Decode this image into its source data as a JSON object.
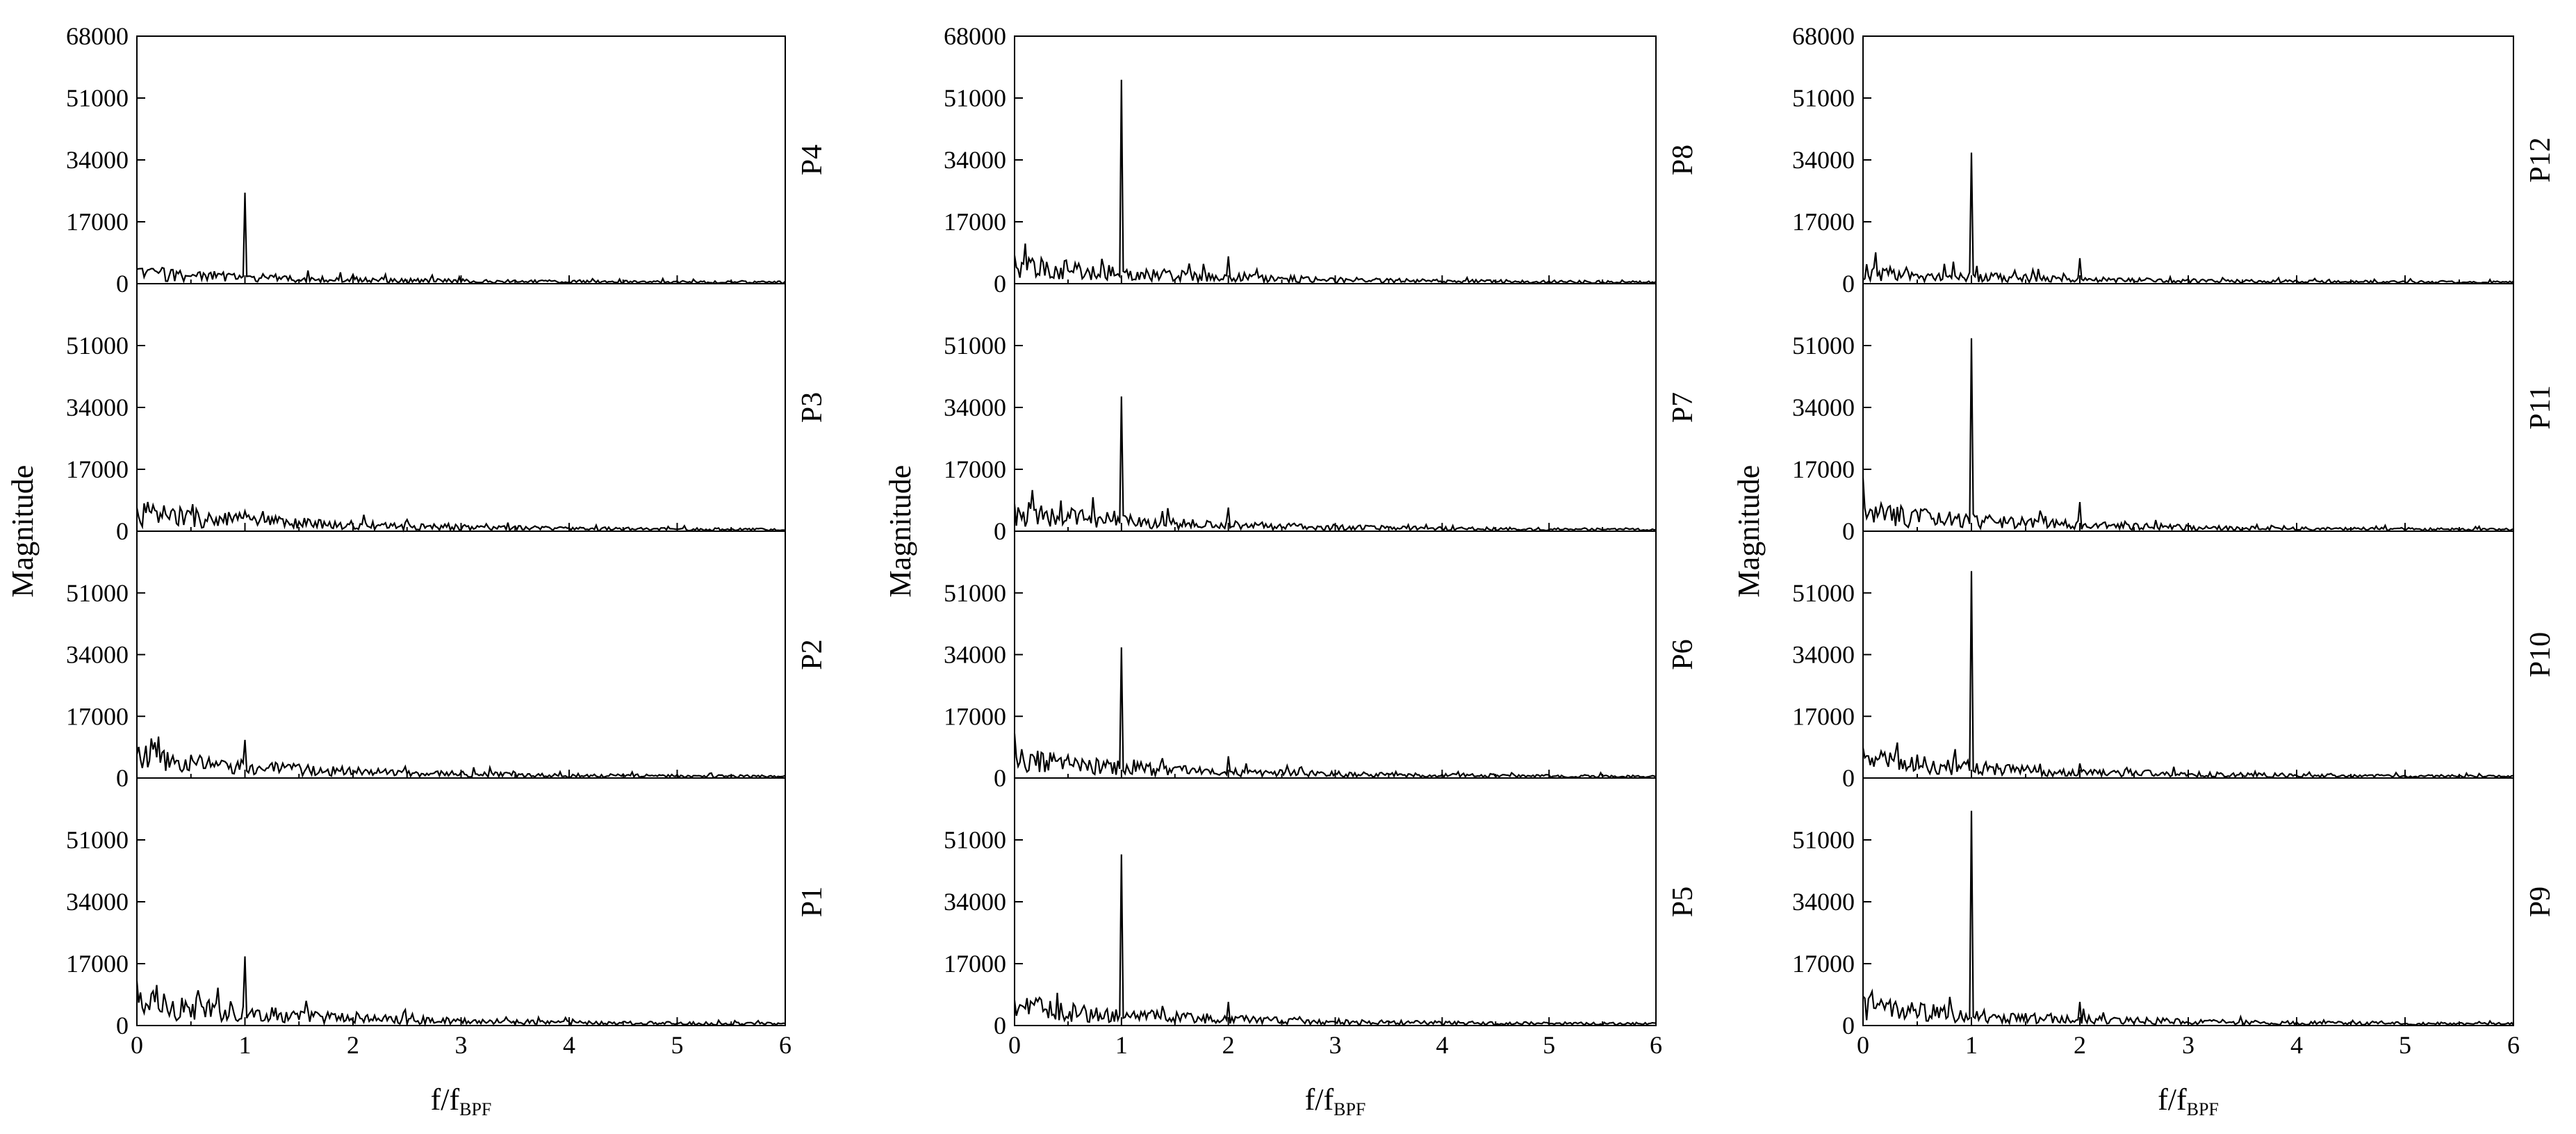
{
  "figure": {
    "ylabel": "Magnitude",
    "xlabel_main": "f/f",
    "xlabel_sub": "BPF",
    "x_ticks": [
      "0",
      "1",
      "2",
      "3",
      "4",
      "5",
      "6"
    ],
    "y_ticks": [
      "0",
      "17000",
      "34000",
      "51000",
      "68000"
    ],
    "line_color": "#000000"
  },
  "chart_data": [
    {
      "type": "line",
      "panel": "P1",
      "column": 1,
      "xlim": [
        0,
        6
      ],
      "ylim": [
        0,
        68000
      ],
      "peak_x": 1,
      "peak_y": 19000,
      "harmonic_2_y": 1200,
      "noise_low": 10000
    },
    {
      "type": "line",
      "panel": "P2",
      "column": 1,
      "xlim": [
        0,
        6
      ],
      "ylim": [
        0,
        68000
      ],
      "peak_x": 1,
      "peak_y": 10500,
      "harmonic_2_y": 1200,
      "noise_low": 8500
    },
    {
      "type": "line",
      "panel": "P3",
      "column": 1,
      "xlim": [
        0,
        6
      ],
      "ylim": [
        0,
        68000
      ],
      "peak_x": 1,
      "peak_y": 5500,
      "harmonic_2_y": 1500,
      "noise_low": 8000
    },
    {
      "type": "line",
      "panel": "P4",
      "column": 1,
      "xlim": [
        0,
        6
      ],
      "ylim": [
        0,
        68000
      ],
      "peak_x": 1,
      "peak_y": 25000,
      "harmonic_2_y": 2500,
      "noise_low": 4500
    },
    {
      "type": "line",
      "panel": "P5",
      "column": 2,
      "xlim": [
        0,
        6
      ],
      "ylim": [
        0,
        68000
      ],
      "peak_x": 1,
      "peak_y": 47000,
      "harmonic_2_y": 6500,
      "noise_low": 8000
    },
    {
      "type": "line",
      "panel": "P6",
      "column": 2,
      "xlim": [
        0,
        6
      ],
      "ylim": [
        0,
        68000
      ],
      "peak_x": 1,
      "peak_y": 36000,
      "harmonic_2_y": 6000,
      "noise_low": 8000
    },
    {
      "type": "line",
      "panel": "P7",
      "column": 2,
      "xlim": [
        0,
        6
      ],
      "ylim": [
        0,
        68000
      ],
      "peak_x": 1,
      "peak_y": 37000,
      "harmonic_2_y": 6500,
      "noise_low": 8000
    },
    {
      "type": "line",
      "panel": "P8",
      "column": 2,
      "xlim": [
        0,
        6
      ],
      "ylim": [
        0,
        68000
      ],
      "peak_x": 1,
      "peak_y": 56000,
      "harmonic_2_y": 7500,
      "noise_low": 8000
    },
    {
      "type": "line",
      "panel": "P9",
      "column": 3,
      "xlim": [
        0,
        6
      ],
      "ylim": [
        0,
        68000
      ],
      "peak_x": 1,
      "peak_y": 59000,
      "harmonic_2_y": 6500,
      "noise_low": 8000
    },
    {
      "type": "line",
      "panel": "P10",
      "column": 3,
      "xlim": [
        0,
        6
      ],
      "ylim": [
        0,
        68000
      ],
      "peak_x": 1,
      "peak_y": 57000,
      "harmonic_2_y": 4000,
      "noise_low": 8000
    },
    {
      "type": "line",
      "panel": "P11",
      "column": 3,
      "xlim": [
        0,
        6
      ],
      "ylim": [
        0,
        68000
      ],
      "peak_x": 1,
      "peak_y": 53000,
      "harmonic_2_y": 8000,
      "noise_low": 8000
    },
    {
      "type": "line",
      "panel": "P12",
      "column": 3,
      "xlim": [
        0,
        6
      ],
      "ylim": [
        0,
        68000
      ],
      "peak_x": 1,
      "peak_y": 36000,
      "harmonic_2_y": 7000,
      "noise_low": 5000
    }
  ]
}
